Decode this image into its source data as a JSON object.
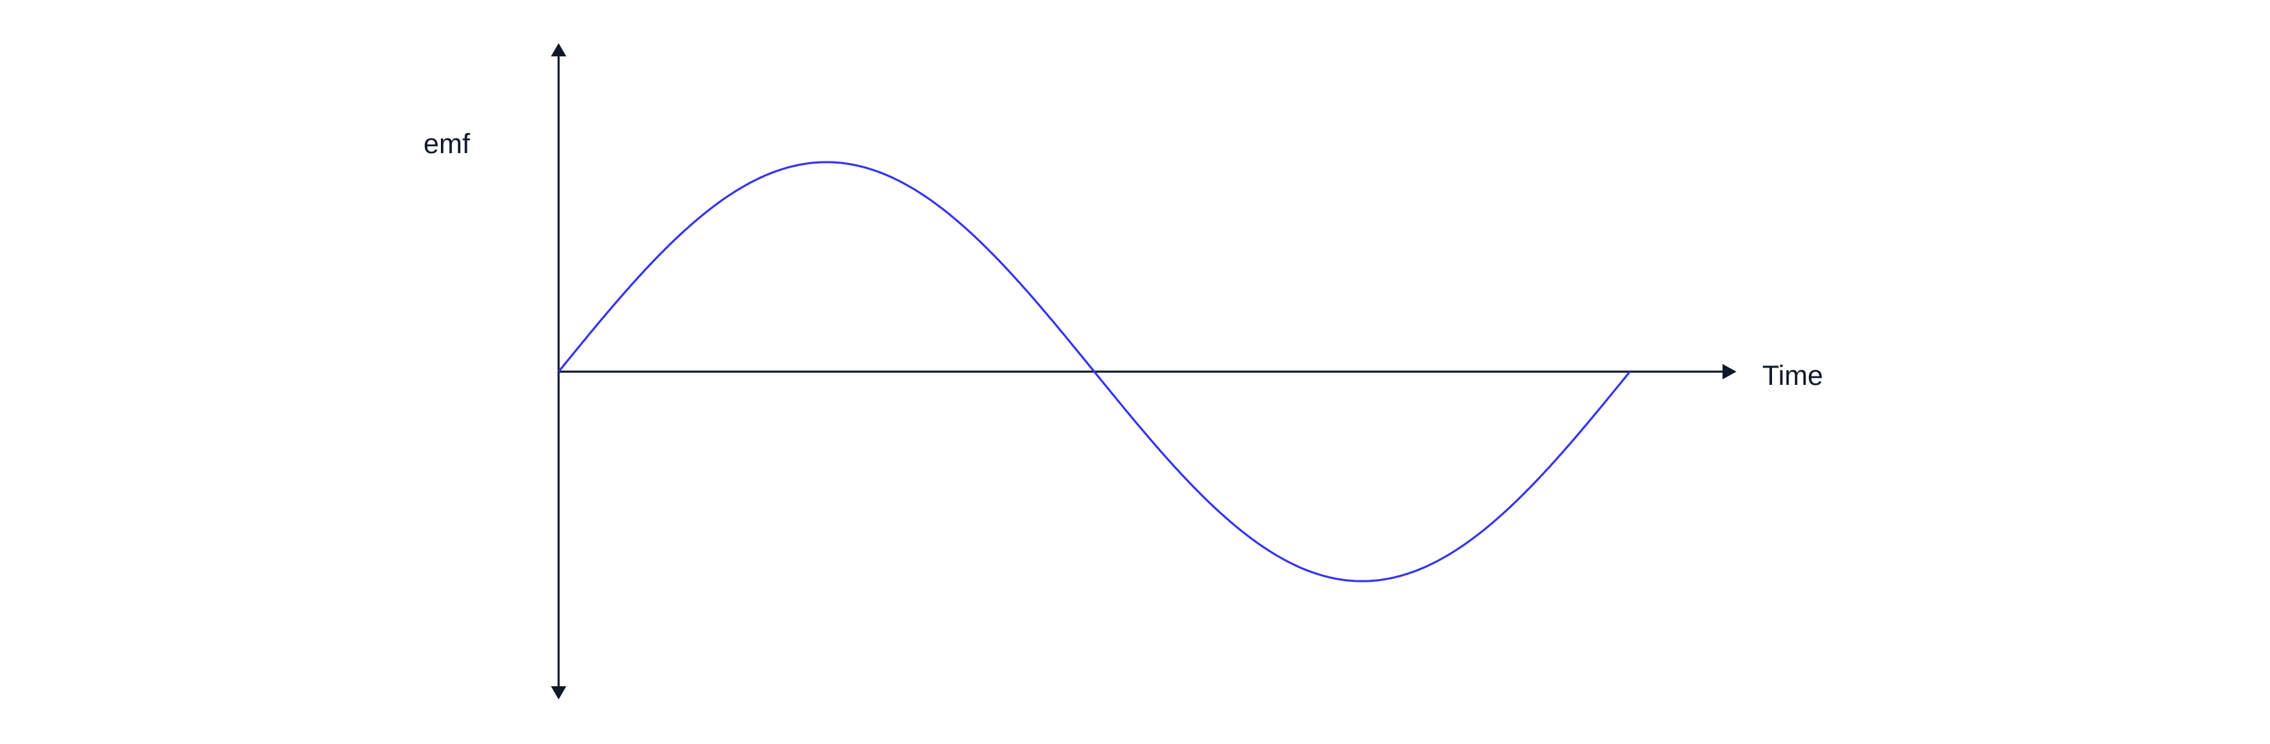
{
  "diagram": {
    "y_axis_label": "emf",
    "x_axis_label": "Time",
    "waveform": "sine",
    "cycles": 1,
    "colors": {
      "axes": "#111827",
      "curve": "#3434f0",
      "background": "#ffffff"
    }
  }
}
